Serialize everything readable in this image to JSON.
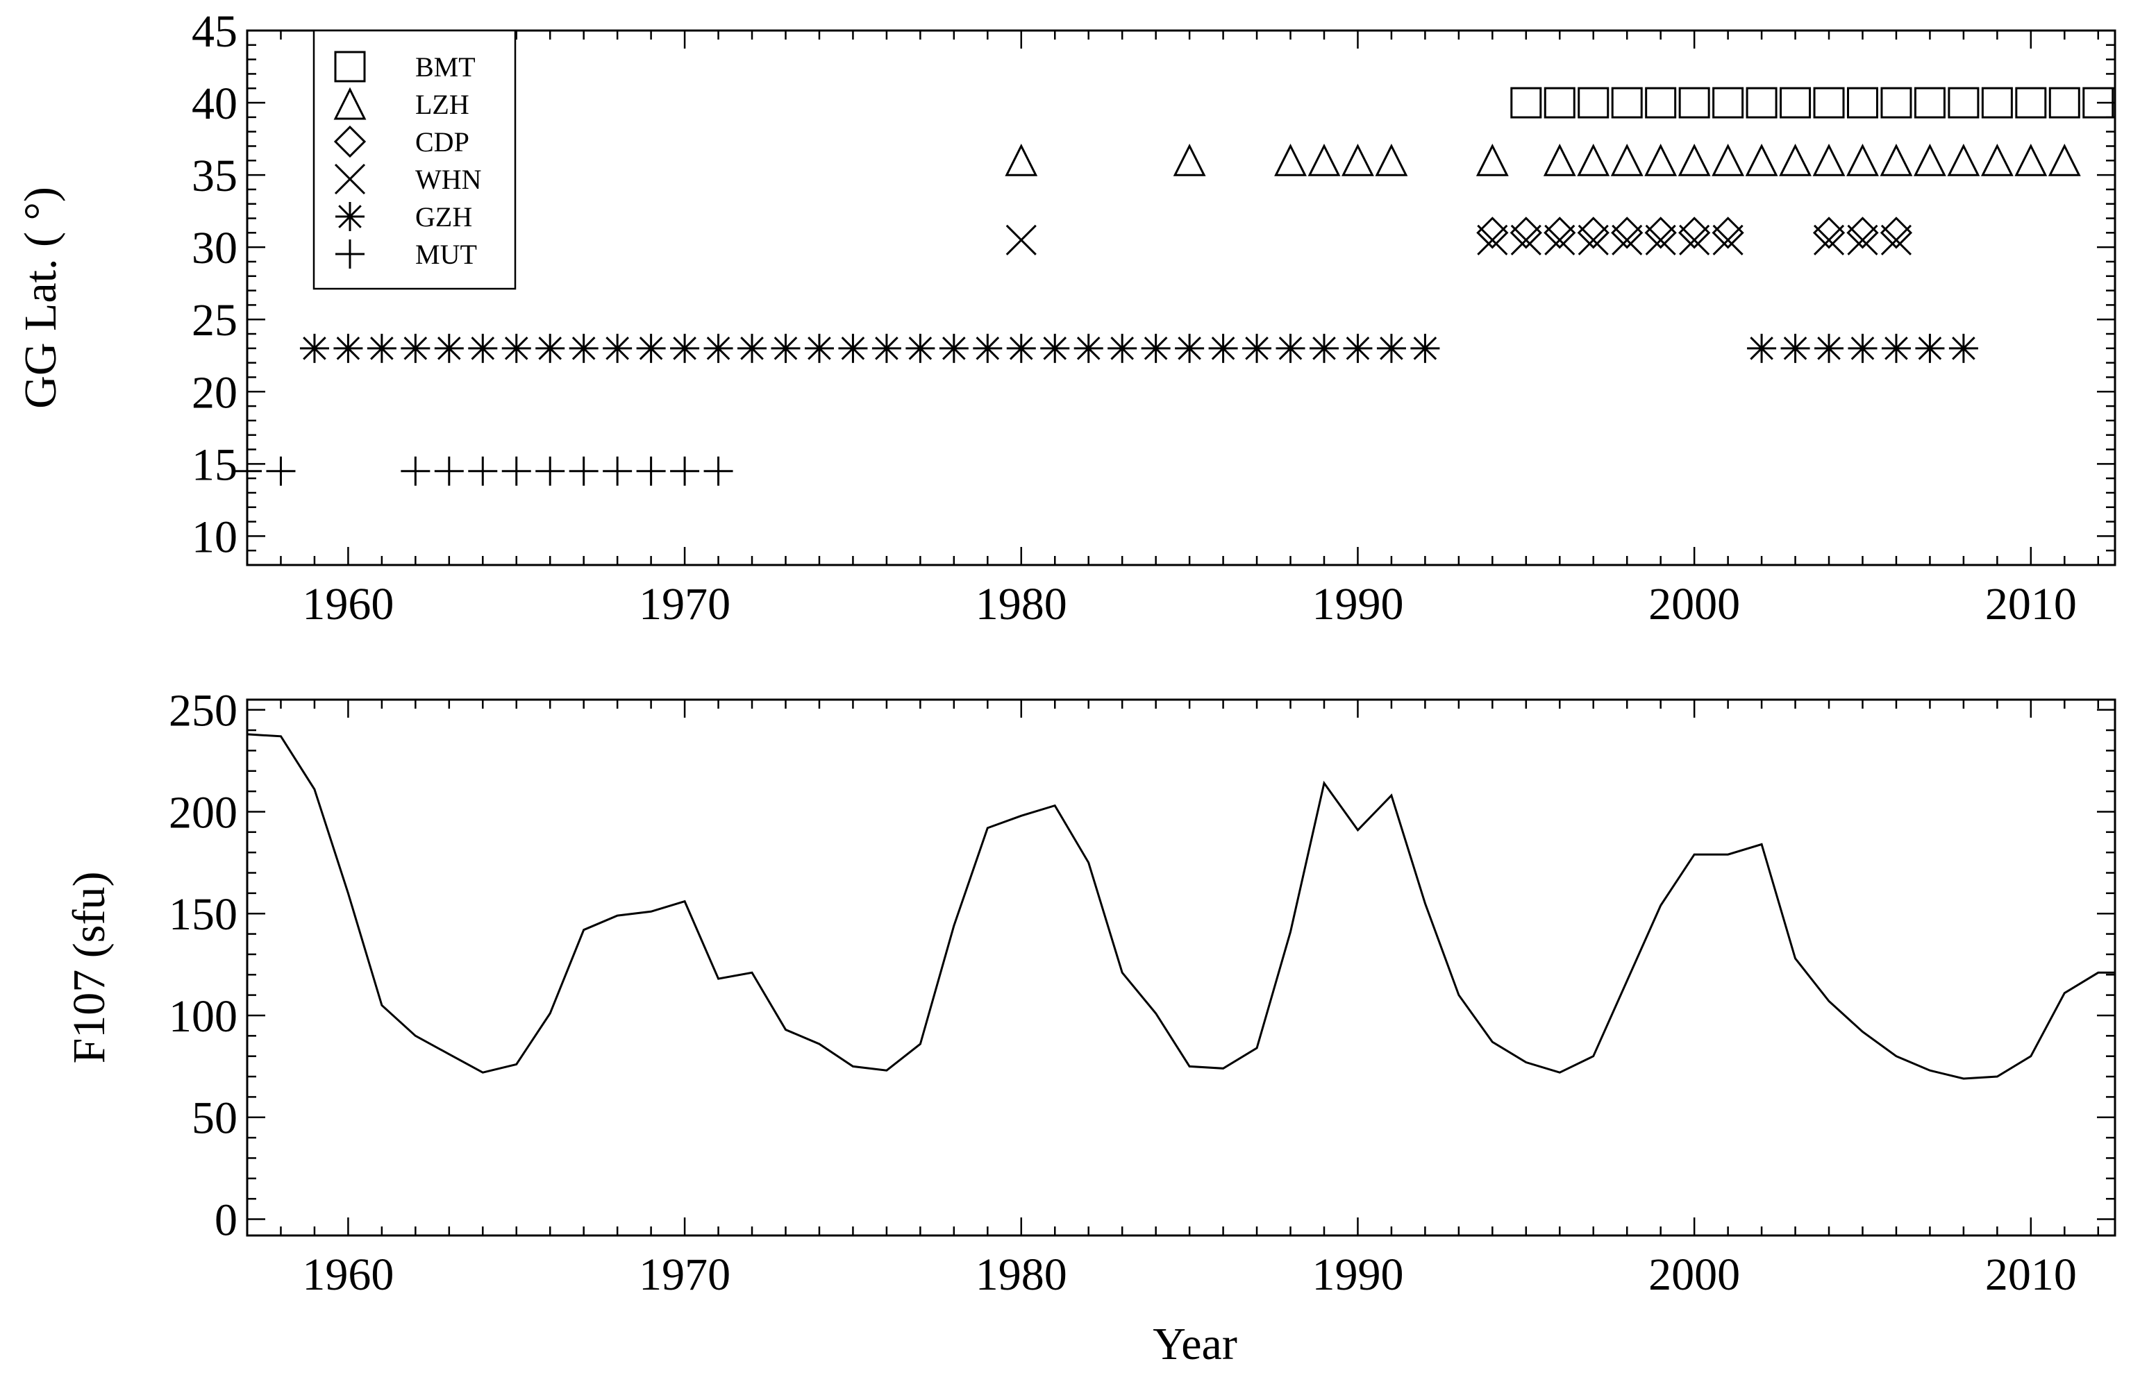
{
  "chart_data": [
    {
      "type": "scatter",
      "title": "",
      "xlabel": "",
      "ylabel": "GG Lat. ( °)",
      "xlim": [
        1957,
        2012.5
      ],
      "ylim": [
        8,
        45
      ],
      "xticks": [
        1960,
        1970,
        1980,
        1990,
        2000,
        2010
      ],
      "yticks": [
        10,
        15,
        20,
        25,
        30,
        35,
        40,
        45
      ],
      "legend_position": "top-left",
      "series": [
        {
          "name": "BMT",
          "marker": "square",
          "y": 40,
          "x": [
            1995,
            1996,
            1997,
            1998,
            1999,
            2000,
            2001,
            2002,
            2003,
            2004,
            2005,
            2006,
            2007,
            2008,
            2009,
            2010,
            2011,
            2012
          ]
        },
        {
          "name": "LZH",
          "marker": "triangle",
          "y": 36,
          "x": [
            1980,
            1985,
            1988,
            1989,
            1990,
            1991,
            1994,
            1996,
            1997,
            1998,
            1999,
            2000,
            2001,
            2002,
            2003,
            2004,
            2005,
            2006,
            2007,
            2008,
            2009,
            2010,
            2011
          ]
        },
        {
          "name": "CDP",
          "marker": "diamond",
          "y": 31,
          "x": [
            1994,
            1995,
            1996,
            1997,
            1998,
            1999,
            2000,
            2001,
            2004,
            2005,
            2006
          ]
        },
        {
          "name": "WHN",
          "marker": "x",
          "y": 30.5,
          "x": [
            1980,
            1994,
            1995,
            1996,
            1997,
            1998,
            1999,
            2000,
            2001,
            2004,
            2005,
            2006
          ]
        },
        {
          "name": "GZH",
          "marker": "asterisk",
          "y": 23,
          "x": [
            1959,
            1960,
            1961,
            1962,
            1963,
            1964,
            1965,
            1966,
            1967,
            1968,
            1969,
            1970,
            1971,
            1972,
            1973,
            1974,
            1975,
            1976,
            1977,
            1978,
            1979,
            1980,
            1981,
            1982,
            1983,
            1984,
            1985,
            1986,
            1987,
            1988,
            1989,
            1990,
            1991,
            1992,
            2002,
            2003,
            2004,
            2005,
            2006,
            2007,
            2008
          ]
        },
        {
          "name": "MUT",
          "marker": "plus",
          "y": 14.5,
          "x": [
            1957,
            1958,
            1962,
            1963,
            1964,
            1965,
            1966,
            1967,
            1968,
            1969,
            1970,
            1971
          ]
        }
      ]
    },
    {
      "type": "line",
      "title": "",
      "xlabel": "Year",
      "ylabel": "F107 (sfu)",
      "xlim": [
        1957,
        2012.5
      ],
      "ylim": [
        -8,
        255
      ],
      "xticks": [
        1960,
        1970,
        1980,
        1990,
        2000,
        2010
      ],
      "yticks": [
        0,
        50,
        100,
        150,
        200,
        250
      ],
      "series": [
        {
          "name": "",
          "x": [
            1957,
            1958,
            1959,
            1960,
            1961,
            1962,
            1963,
            1964,
            1965,
            1966,
            1967,
            1968,
            1969,
            1970,
            1971,
            1972,
            1973,
            1974,
            1975,
            1976,
            1977,
            1978,
            1979,
            1980,
            1981,
            1982,
            1983,
            1984,
            1985,
            1986,
            1987,
            1988,
            1989,
            1990,
            1991,
            1992,
            1993,
            1994,
            1995,
            1996,
            1997,
            1998,
            1999,
            2000,
            2001,
            2002,
            2003,
            2004,
            2005,
            2006,
            2007,
            2008,
            2009,
            2010,
            2011,
            2012,
            2012.5
          ],
          "values": [
            238,
            237,
            211,
            160,
            105,
            90,
            81,
            72,
            76,
            101,
            142,
            149,
            151,
            156,
            118,
            121,
            93,
            86,
            75,
            73,
            86,
            144,
            192,
            198,
            203,
            175,
            121,
            101,
            75,
            74,
            84,
            141,
            214,
            191,
            208,
            155,
            110,
            87,
            77,
            72,
            80,
            117,
            154,
            179,
            179,
            184,
            128,
            107,
            92,
            80,
            73,
            69,
            70,
            80,
            111,
            121,
            121
          ]
        }
      ]
    }
  ]
}
